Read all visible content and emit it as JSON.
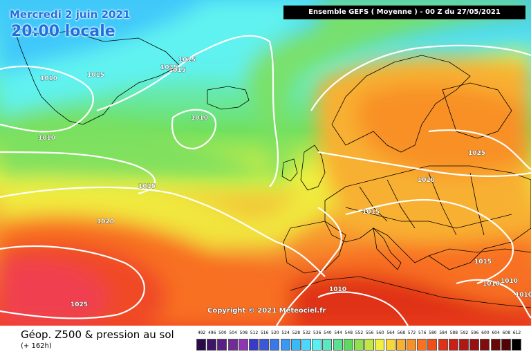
{
  "header": {
    "date_title": "Mercredi 2 juin 2021",
    "local_time": "20:00 locale",
    "model_banner": "Ensemble GEFS  ( Moyenne )  - 00 Z du 27/05/2021"
  },
  "footer": {
    "parameter_title": "Géop. Z500 & pression au sol",
    "lead_time": "(+ 162h)",
    "copyright": "Copyright © 2021 Meteociel.fr"
  },
  "scale": {
    "values": [
      "492",
      "496",
      "500",
      "504",
      "508",
      "512",
      "516",
      "520",
      "524",
      "528",
      "532",
      "536",
      "540",
      "544",
      "548",
      "552",
      "556",
      "560",
      "564",
      "568",
      "572",
      "576",
      "580",
      "584",
      "588",
      "592",
      "596",
      "600",
      "604",
      "608",
      "612"
    ],
    "colors": [
      "#2a0a4a",
      "#3f1566",
      "#5a1f84",
      "#74299c",
      "#8e35b0",
      "#3a3ac8",
      "#3a58d8",
      "#3a78e8",
      "#3a98f0",
      "#3ab8f8",
      "#4ad8ff",
      "#5af0f0",
      "#5ae8c0",
      "#5ae090",
      "#60d860",
      "#90e050",
      "#c0e840",
      "#f0f040",
      "#f8d838",
      "#f8b030",
      "#f89028",
      "#f87020",
      "#f05018",
      "#e03018",
      "#c82018",
      "#b01818",
      "#981010",
      "#800c0c",
      "#680808",
      "#500404",
      "#000000"
    ]
  },
  "isobars": [
    {
      "label": "1010"
    },
    {
      "label": "1015"
    },
    {
      "label": "1010"
    },
    {
      "label": "1015"
    },
    {
      "label": "1015"
    },
    {
      "label": "1015"
    },
    {
      "label": "1010"
    },
    {
      "label": "1015"
    },
    {
      "label": "1020"
    },
    {
      "label": "1025"
    },
    {
      "label": "1015"
    },
    {
      "label": "1020"
    },
    {
      "label": "1025"
    },
    {
      "label": "1010"
    },
    {
      "label": "1015"
    },
    {
      "label": "1010"
    },
    {
      "label": "1010"
    },
    {
      "label": "1010"
    }
  ]
}
